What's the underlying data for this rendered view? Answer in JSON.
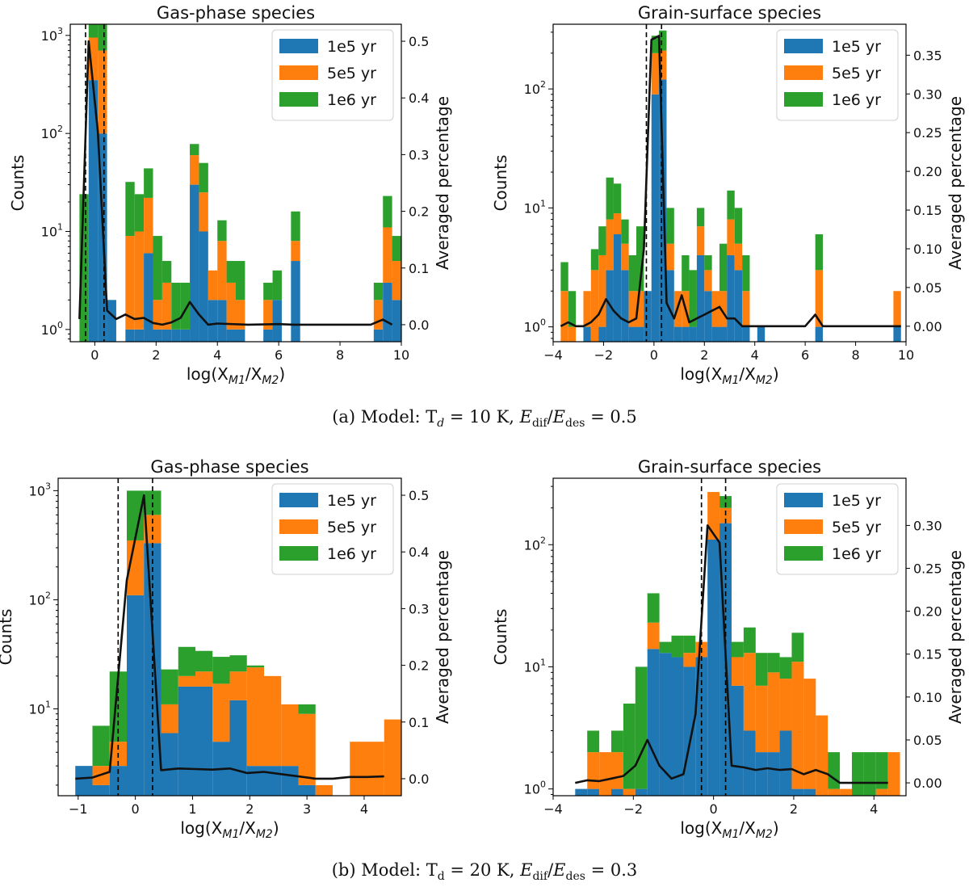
{
  "colors": {
    "c1e5": "#1f77b4",
    "c5e5": "#ff7f0e",
    "c1e6": "#2ca02c",
    "line": "#111111",
    "frame": "#000000"
  },
  "legend": [
    {
      "key": "1e5",
      "label": "1e5 yr",
      "color": "#1f77b4"
    },
    {
      "key": "5e5",
      "label": "5e5 yr",
      "color": "#ff7f0e"
    },
    {
      "key": "1e6",
      "label": "1e6 yr",
      "color": "#2ca02c"
    }
  ],
  "captions": {
    "a": "(a) Model: T_d = 10 K, E_dif/E_des = 0.5",
    "b": "(b) Model: T_d = 20 K, E_dif/E_des = 0.3"
  },
  "chart_data": [
    {
      "id": "a1",
      "type": "bar",
      "title": "Gas-phase species",
      "xlabel": "log(X_M1/X_M2)",
      "ylabel": "Counts",
      "ylabel_right": "Averaged percentage",
      "xlim": [
        -0.8,
        10
      ],
      "xticks": [
        0,
        2,
        4,
        6,
        8,
        10
      ],
      "ylim_log": [
        0.75,
        1300
      ],
      "yticks": [
        1,
        10,
        100,
        1000
      ],
      "y2lim": [
        -0.03,
        0.53
      ],
      "y2ticks": [
        0.0,
        0.1,
        0.2,
        0.3,
        0.4,
        0.5
      ],
      "y2dec": 1,
      "vlines": [
        -0.301,
        0.301
      ],
      "bin_width": 0.3,
      "bins": [
        [
          -0.5,
          0,
          0,
          24
        ],
        [
          -0.2,
          350,
          600,
          1000
        ],
        [
          0.1,
          100,
          600,
          650
        ],
        [
          0.4,
          2,
          0,
          0
        ],
        [
          1.0,
          1,
          8,
          23
        ],
        [
          1.3,
          1,
          9,
          14
        ],
        [
          1.6,
          6,
          16,
          22
        ],
        [
          1.9,
          1,
          1,
          7
        ],
        [
          2.2,
          1,
          2,
          2
        ],
        [
          2.5,
          1,
          0,
          2
        ],
        [
          2.8,
          1,
          0,
          2
        ],
        [
          3.1,
          30,
          30,
          18
        ],
        [
          3.4,
          10,
          15,
          25
        ],
        [
          3.7,
          2,
          2,
          0
        ],
        [
          4.0,
          2,
          6,
          5
        ],
        [
          4.3,
          1,
          2,
          2
        ],
        [
          4.6,
          1,
          1,
          3
        ],
        [
          5.5,
          1,
          1,
          1
        ],
        [
          5.8,
          2,
          0,
          2
        ],
        [
          6.4,
          5,
          3,
          8
        ],
        [
          9.1,
          1,
          1,
          1
        ],
        [
          9.4,
          3,
          8,
          12
        ],
        [
          9.7,
          2,
          3,
          4
        ]
      ],
      "line": {
        "x": [
          -0.5,
          -0.2,
          0.1,
          0.4,
          0.7,
          1.0,
          1.3,
          1.6,
          1.9,
          2.2,
          2.5,
          2.8,
          3.1,
          3.4,
          3.7,
          4.0,
          5.0,
          6.0,
          6.5,
          7.0,
          8.0,
          9.0,
          9.4,
          9.7
        ],
        "y": [
          0.01,
          0.5,
          0.34,
          0.025,
          0.01,
          0.018,
          0.01,
          0.012,
          0.003,
          0.0,
          0.004,
          0.012,
          0.04,
          0.018,
          0.0,
          0.002,
          0.0,
          0.001,
          0.0,
          0.0,
          0.0,
          0.0,
          0.009,
          0.0
        ]
      }
    },
    {
      "id": "a2",
      "type": "bar",
      "title": "Grain-surface species",
      "xlabel": "log(X_M1/X_M2)",
      "ylabel": "Counts",
      "ylabel_right": "Averaged percentage",
      "xlim": [
        -4.0,
        10
      ],
      "xticks": [
        -4,
        -2,
        0,
        2,
        4,
        6,
        8,
        10
      ],
      "ylim_log": [
        0.75,
        350
      ],
      "yticks": [
        1,
        10,
        100
      ],
      "y2lim": [
        -0.02,
        0.39
      ],
      "y2ticks": [
        0.0,
        0.05,
        0.1,
        0.15,
        0.2,
        0.25,
        0.3,
        0.35
      ],
      "y2dec": 2,
      "vlines": [
        -0.301,
        0.301
      ],
      "bin_width": 0.3,
      "bins": [
        [
          -3.7,
          0,
          2,
          1.5
        ],
        [
          -3.4,
          0,
          1,
          1
        ],
        [
          -2.8,
          1,
          1,
          0
        ],
        [
          -2.5,
          0,
          3,
          1.5
        ],
        [
          -2.2,
          1,
          3,
          3
        ],
        [
          -1.9,
          3,
          5,
          10
        ],
        [
          -1.6,
          6,
          3,
          7
        ],
        [
          -1.3,
          3,
          2,
          3
        ],
        [
          -1.0,
          1,
          1,
          2
        ],
        [
          -0.7,
          1,
          1,
          5
        ],
        [
          -0.4,
          2,
          0,
          0
        ],
        [
          -0.1,
          90,
          110,
          80
        ],
        [
          0.2,
          120,
          90,
          100
        ],
        [
          0.5,
          3,
          2,
          5
        ],
        [
          0.8,
          1,
          1,
          0
        ],
        [
          1.1,
          1,
          1,
          2
        ],
        [
          1.4,
          1,
          0,
          2
        ],
        [
          1.7,
          4,
          3,
          3
        ],
        [
          2.0,
          2,
          1,
          1
        ],
        [
          2.3,
          1,
          1,
          0
        ],
        [
          2.6,
          1,
          1,
          3
        ],
        [
          2.9,
          4,
          4,
          6
        ],
        [
          3.2,
          3,
          2,
          5
        ],
        [
          3.5,
          1,
          1,
          2
        ],
        [
          4.1,
          1,
          0,
          0
        ],
        [
          6.4,
          1,
          2,
          3
        ],
        [
          9.5,
          1,
          1,
          0
        ]
      ],
      "line": {
        "x": [
          -3.7,
          -3.4,
          -3.1,
          -2.8,
          -2.5,
          -2.2,
          -1.9,
          -1.6,
          -1.3,
          -1.0,
          -0.7,
          -0.4,
          -0.1,
          0.2,
          0.5,
          0.8,
          1.1,
          1.4,
          1.7,
          2.0,
          2.3,
          2.6,
          2.9,
          3.2,
          3.5,
          3.8,
          4.1,
          5.0,
          6.0,
          6.4,
          6.7,
          8.0,
          9.0,
          9.8
        ],
        "y": [
          0.0,
          0.005,
          0.0,
          0.0,
          0.005,
          0.015,
          0.035,
          0.02,
          0.01,
          0.005,
          0.01,
          0.1,
          0.37,
          0.375,
          0.03,
          0.01,
          0.04,
          0.005,
          0.01,
          0.015,
          0.02,
          0.025,
          0.01,
          0.01,
          0.0,
          0.0,
          0.0,
          0.0,
          0.0,
          0.015,
          0.0,
          0.0,
          0.0,
          0.0
        ]
      }
    },
    {
      "id": "b1",
      "type": "bar",
      "title": "Gas-phase species",
      "xlabel": "log(X_M1/X_M2)",
      "ylabel": "Counts",
      "ylabel_right": "Averaged percentage",
      "xlim": [
        -1.35,
        4.65
      ],
      "xticks": [
        -1,
        0,
        1,
        2,
        3,
        4
      ],
      "ylim_log": [
        1.6,
        1300
      ],
      "yticks": [
        10,
        100,
        1000
      ],
      "y2lim": [
        -0.03,
        0.53
      ],
      "y2ticks": [
        0.0,
        0.1,
        0.2,
        0.3,
        0.4,
        0.5
      ],
      "y2dec": 1,
      "vlines": [
        -0.301,
        0.301
      ],
      "bin_width": 0.3,
      "bins": [
        [
          -1.05,
          3,
          0,
          0
        ],
        [
          -0.75,
          2,
          1,
          4
        ],
        [
          -0.45,
          3,
          2,
          17
        ],
        [
          -0.15,
          110,
          240,
          650
        ],
        [
          0.15,
          330,
          270,
          400
        ],
        [
          0.45,
          6,
          5,
          12
        ],
        [
          0.75,
          16,
          4,
          17
        ],
        [
          1.05,
          16,
          6,
          12
        ],
        [
          1.35,
          5,
          12,
          13
        ],
        [
          1.65,
          12,
          10,
          9
        ],
        [
          1.95,
          3,
          21,
          1
        ],
        [
          2.25,
          3,
          17,
          0
        ],
        [
          2.55,
          3,
          8,
          0
        ],
        [
          2.85,
          2,
          7,
          2
        ],
        [
          3.15,
          1,
          1,
          0
        ],
        [
          3.45,
          0,
          0,
          0
        ],
        [
          3.75,
          1,
          4,
          0
        ],
        [
          4.05,
          1,
          4,
          0
        ],
        [
          4.35,
          1,
          7,
          0
        ]
      ],
      "line": {
        "x": [
          -1.05,
          -0.75,
          -0.45,
          -0.15,
          0.15,
          0.45,
          0.75,
          1.05,
          1.35,
          1.65,
          1.95,
          2.25,
          2.55,
          2.85,
          3.15,
          3.45,
          3.75,
          4.05,
          4.35
        ],
        "y": [
          0.0,
          0.002,
          0.012,
          0.35,
          0.5,
          0.015,
          0.018,
          0.017,
          0.016,
          0.018,
          0.01,
          0.012,
          0.008,
          0.004,
          0.0,
          0.0,
          0.003,
          0.003,
          0.004
        ]
      }
    },
    {
      "id": "b2",
      "type": "bar",
      "title": "Grain-surface species",
      "xlabel": "log(X_M1/X_M2)",
      "ylabel": "Counts",
      "ylabel_right": "Averaged percentage",
      "xlim": [
        -4.0,
        4.8
      ],
      "xticks": [
        -4,
        -2,
        0,
        2,
        4
      ],
      "ylim_log": [
        0.88,
        350
      ],
      "yticks": [
        1,
        10,
        100
      ],
      "y2lim": [
        -0.015,
        0.355
      ],
      "y2ticks": [
        0.0,
        0.05,
        0.1,
        0.15,
        0.2,
        0.25,
        0.3
      ],
      "y2dec": 2,
      "vlines": [
        -0.301,
        0.301
      ],
      "bin_width": 0.3,
      "bins": [
        [
          -3.45,
          1,
          0,
          0
        ],
        [
          -3.15,
          1,
          1,
          1
        ],
        [
          -2.85,
          0,
          2,
          0
        ],
        [
          -2.55,
          1,
          1,
          1
        ],
        [
          -2.25,
          0,
          1,
          4
        ],
        [
          -1.95,
          1,
          0,
          9
        ],
        [
          -1.65,
          14,
          9,
          17
        ],
        [
          -1.35,
          13,
          0,
          3
        ],
        [
          -1.05,
          12,
          0,
          6
        ],
        [
          -0.75,
          10,
          3,
          5
        ],
        [
          -0.45,
          12,
          4,
          0
        ],
        [
          -0.15,
          110,
          160,
          0
        ],
        [
          0.15,
          150,
          50,
          50
        ],
        [
          0.45,
          7,
          5,
          4
        ],
        [
          0.75,
          3,
          10,
          8
        ],
        [
          1.05,
          2,
          5,
          6
        ],
        [
          1.35,
          2,
          7,
          4
        ],
        [
          1.65,
          3,
          5,
          4
        ],
        [
          1.95,
          1,
          10,
          8
        ],
        [
          2.25,
          1,
          7,
          0
        ],
        [
          2.55,
          0,
          4,
          0
        ],
        [
          2.85,
          0,
          1,
          1
        ],
        [
          3.15,
          0,
          1,
          0
        ],
        [
          3.45,
          0,
          0,
          2
        ],
        [
          3.75,
          0,
          0,
          2
        ],
        [
          4.05,
          0,
          1,
          1
        ],
        [
          4.35,
          0,
          2,
          0
        ]
      ],
      "line": {
        "x": [
          -3.45,
          -3.15,
          -2.85,
          -2.55,
          -2.25,
          -1.95,
          -1.65,
          -1.35,
          -1.05,
          -0.75,
          -0.45,
          -0.15,
          0.15,
          0.45,
          0.75,
          1.05,
          1.35,
          1.65,
          1.95,
          2.25,
          2.55,
          2.85,
          3.15,
          3.45,
          3.75,
          4.05,
          4.35
        ],
        "y": [
          0.0,
          0.003,
          0.002,
          0.005,
          0.008,
          0.02,
          0.05,
          0.02,
          0.005,
          0.01,
          0.08,
          0.3,
          0.28,
          0.02,
          0.018,
          0.015,
          0.017,
          0.015,
          0.016,
          0.01,
          0.015,
          0.01,
          0.0,
          0.0,
          0.0,
          0.0,
          0.0
        ]
      }
    }
  ]
}
